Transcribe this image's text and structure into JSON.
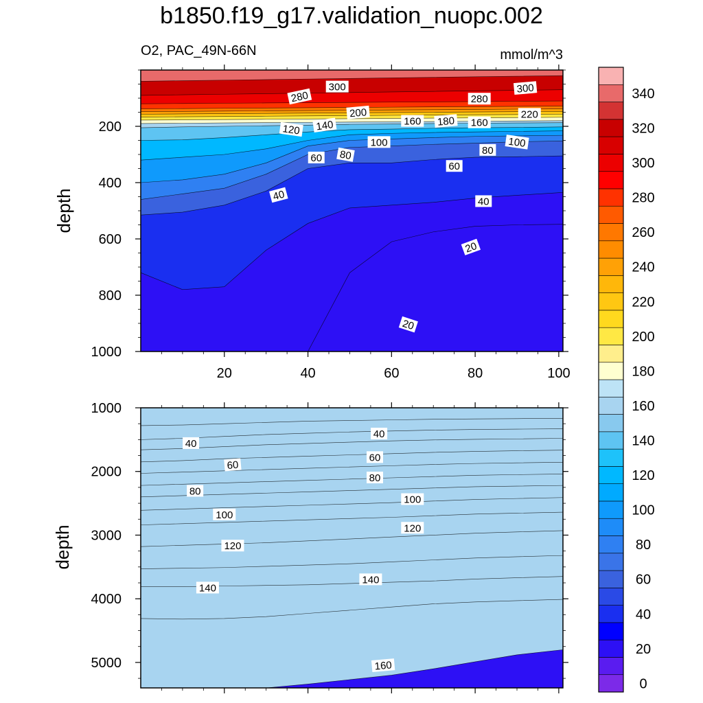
{
  "title": "b1850.f19_g17.validation_nuopc.002",
  "chart_data": {
    "type": "contour",
    "variable": "O2",
    "region": "PAC_49N-66N",
    "left_label": "O2, PAC_49N-66N",
    "units": "mmol/m^3",
    "colorbar": {
      "levels": [
        -5,
        5,
        15,
        25,
        35,
        45,
        55,
        65,
        75,
        85,
        95,
        105,
        115,
        125,
        135,
        145,
        155,
        165,
        175,
        185,
        195,
        205,
        215,
        225,
        235,
        245,
        255,
        265,
        275,
        285,
        295,
        305,
        315,
        325,
        335,
        345,
        355
      ],
      "colors": [
        "#7c2ae8",
        "#5a1cf0",
        "#2d10f5",
        "#0000ff",
        "#1a2ff0",
        "#2a4ae6",
        "#3a62de",
        "#3a74e8",
        "#2f80f2",
        "#1e8cf8",
        "#0f9afc",
        "#00aaff",
        "#00b8ff",
        "#1ec2fa",
        "#5ec4f2",
        "#88c9ee",
        "#a8d4f0",
        "#bde3f6",
        "#ffffd0",
        "#ffee8c",
        "#ffe844",
        "#ffd91e",
        "#ffc712",
        "#ffb70a",
        "#ffa106",
        "#ff8c00",
        "#ff7800",
        "#ff5a00",
        "#ff3200",
        "#ff0000",
        "#ec0000",
        "#d80000",
        "#c80000",
        "#d33333",
        "#e86a6a",
        "#f9b2b2"
      ],
      "tick_labels": [
        "0",
        "20",
        "40",
        "60",
        "80",
        "100",
        "120",
        "140",
        "160",
        "180",
        "200",
        "220",
        "240",
        "260",
        "280",
        "300",
        "320",
        "340"
      ]
    },
    "panels": [
      {
        "name": "upper",
        "ylabel": "depth",
        "ylim": [
          1000,
          0
        ],
        "xlim": [
          0,
          101
        ],
        "yticks": [
          "200",
          "400",
          "600",
          "800",
          "1000"
        ],
        "xticks": [
          "20",
          "40",
          "60",
          "80",
          "100"
        ],
        "x_profile": [
          0,
          10,
          20,
          30,
          40,
          50,
          60,
          70,
          80,
          90,
          101
        ],
        "contour_depths": {
          "20": [
            2000,
            2000,
            2000,
            2000,
            2000,
            720,
            610,
            575,
            555,
            550,
            548
          ],
          "40": [
            720,
            780,
            770,
            640,
            545,
            490,
            480,
            470,
            455,
            445,
            435
          ],
          "60": [
            515,
            505,
            480,
            430,
            350,
            330,
            330,
            318,
            310,
            308,
            305
          ],
          "80": [
            460,
            440,
            420,
            370,
            300,
            275,
            270,
            264,
            260,
            255,
            252
          ],
          "100": [
            400,
            390,
            370,
            330,
            270,
            250,
            245,
            240,
            236,
            234,
            232
          ],
          "120": [
            320,
            310,
            300,
            280,
            250,
            230,
            225,
            222,
            220,
            218,
            216
          ],
          "140": [
            250,
            248,
            240,
            230,
            220,
            212,
            210,
            207,
            205,
            204,
            202
          ],
          "160": [
            205,
            202,
            200,
            198,
            196,
            193,
            192,
            190,
            189,
            188,
            187
          ],
          "180": [
            190,
            189,
            188,
            187,
            186,
            185,
            184,
            183,
            182,
            181,
            180
          ],
          "200": [
            178,
            177,
            176,
            175,
            174,
            173,
            172,
            171,
            170,
            169,
            168
          ],
          "220": [
            167,
            166,
            165,
            164,
            163,
            162,
            161,
            160,
            159,
            158,
            157
          ],
          "240": [
            157,
            156,
            155,
            154,
            153,
            152,
            151,
            150,
            149,
            148,
            147
          ],
          "260": [
            148,
            147,
            146,
            145,
            144,
            143,
            142,
            141,
            140,
            139,
            138
          ],
          "280": [
            138,
            137,
            136,
            135,
            134,
            133,
            132,
            131,
            130,
            129,
            128
          ],
          "300": [
            120,
            119,
            118,
            117,
            116,
            115,
            114,
            113,
            112,
            111,
            110
          ],
          "320": [
            90,
            88,
            86,
            84,
            82,
            80,
            78,
            76,
            74,
            72,
            70
          ],
          "340": [
            40,
            38,
            36,
            34,
            32,
            30,
            28,
            26,
            24,
            22,
            20
          ]
        },
        "labels": [
          {
            "text": "300",
            "x": 47,
            "y": 60,
            "angle": 0
          },
          {
            "text": "280",
            "x": 38,
            "y": 95,
            "angle": -12
          },
          {
            "text": "280",
            "x": 81,
            "y": 103,
            "angle": 0
          },
          {
            "text": "300",
            "x": 92,
            "y": 65,
            "angle": -5
          },
          {
            "text": "200",
            "x": 52,
            "y": 152,
            "angle": -5
          },
          {
            "text": "220",
            "x": 93,
            "y": 157,
            "angle": 0
          },
          {
            "text": "120",
            "x": 36,
            "y": 212,
            "angle": 8
          },
          {
            "text": "140",
            "x": 44,
            "y": 197,
            "angle": -8
          },
          {
            "text": "160",
            "x": 65,
            "y": 182,
            "angle": 0
          },
          {
            "text": "180",
            "x": 73,
            "y": 182,
            "angle": -5
          },
          {
            "text": "160",
            "x": 81,
            "y": 187,
            "angle": 0
          },
          {
            "text": "100",
            "x": 57,
            "y": 257,
            "angle": 0
          },
          {
            "text": "100",
            "x": 90,
            "y": 257,
            "angle": 8
          },
          {
            "text": "80",
            "x": 49,
            "y": 302,
            "angle": 10
          },
          {
            "text": "80",
            "x": 83,
            "y": 285,
            "angle": 0
          },
          {
            "text": "60",
            "x": 42,
            "y": 312,
            "angle": 0
          },
          {
            "text": "60",
            "x": 75,
            "y": 342,
            "angle": 0
          },
          {
            "text": "40",
            "x": 33,
            "y": 445,
            "angle": -15
          },
          {
            "text": "40",
            "x": 82,
            "y": 467,
            "angle": 0
          },
          {
            "text": "20",
            "x": 79,
            "y": 630,
            "angle": -20
          },
          {
            "text": "20",
            "x": 64,
            "y": 905,
            "angle": 18
          }
        ]
      },
      {
        "name": "lower",
        "ylabel": "depth",
        "ylim": [
          5400,
          1000
        ],
        "xlim": [
          0,
          101
        ],
        "yticks": [
          "1000",
          "2000",
          "3000",
          "4000",
          "5000"
        ],
        "x_profile": [
          0,
          10,
          20,
          30,
          40,
          50,
          60,
          70,
          80,
          90,
          101
        ],
        "contour_depths": {
          "20": [
            1000,
            1000,
            1000,
            1000,
            1000,
            1000,
            1000,
            1000,
            1000,
            1000,
            1000
          ],
          "30": [
            1280,
            1270,
            1250,
            1230,
            1210,
            1200,
            1190,
            1180,
            1175,
            1170,
            1165
          ],
          "40": [
            1500,
            1480,
            1450,
            1420,
            1400,
            1380,
            1365,
            1350,
            1340,
            1335,
            1330
          ],
          "50": [
            1660,
            1640,
            1610,
            1580,
            1560,
            1540,
            1520,
            1505,
            1495,
            1488,
            1480
          ],
          "60": [
            1850,
            1830,
            1800,
            1780,
            1760,
            1740,
            1720,
            1700,
            1685,
            1675,
            1665
          ],
          "70": [
            2030,
            2010,
            1990,
            1970,
            1950,
            1930,
            1910,
            1890,
            1875,
            1865,
            1855
          ],
          "80": [
            2220,
            2200,
            2180,
            2160,
            2140,
            2120,
            2100,
            2080,
            2060,
            2050,
            2040
          ],
          "90": [
            2400,
            2380,
            2360,
            2340,
            2320,
            2300,
            2280,
            2260,
            2240,
            2230,
            2220
          ],
          "100": [
            2610,
            2590,
            2570,
            2550,
            2530,
            2510,
            2490,
            2465,
            2440,
            2425,
            2410
          ],
          "110": [
            2840,
            2820,
            2800,
            2780,
            2760,
            2740,
            2720,
            2695,
            2670,
            2655,
            2640
          ],
          "120": [
            3180,
            3160,
            3140,
            3120,
            3090,
            3060,
            3030,
            3000,
            2970,
            2950,
            2930
          ],
          "130": [
            3530,
            3520,
            3510,
            3490,
            3470,
            3450,
            3420,
            3390,
            3360,
            3340,
            3320
          ],
          "140": [
            3810,
            3810,
            3800,
            3790,
            3780,
            3760,
            3740,
            3720,
            3690,
            3670,
            3650
          ],
          "150": [
            4310,
            4320,
            4310,
            4280,
            4230,
            4180,
            4130,
            4080,
            4050,
            4030,
            4010
          ],
          "160": [
            5460,
            5460,
            5460,
            5400,
            5340,
            5270,
            5200,
            5100,
            4990,
            4880,
            4800
          ]
        },
        "labels": [
          {
            "text": "40",
            "x": 12,
            "y": 1560,
            "angle": 0
          },
          {
            "text": "40",
            "x": 57,
            "y": 1410,
            "angle": 0
          },
          {
            "text": "60",
            "x": 22,
            "y": 1900,
            "angle": -5
          },
          {
            "text": "60",
            "x": 56,
            "y": 1780,
            "angle": 0
          },
          {
            "text": "80",
            "x": 13,
            "y": 2310,
            "angle": 0
          },
          {
            "text": "80",
            "x": 56,
            "y": 2100,
            "angle": 0
          },
          {
            "text": "100",
            "x": 20,
            "y": 2680,
            "angle": 0
          },
          {
            "text": "100",
            "x": 65,
            "y": 2440,
            "angle": 0
          },
          {
            "text": "120",
            "x": 22,
            "y": 3170,
            "angle": 0
          },
          {
            "text": "120",
            "x": 65,
            "y": 2890,
            "angle": 0
          },
          {
            "text": "140",
            "x": 16,
            "y": 3830,
            "angle": 0
          },
          {
            "text": "140",
            "x": 55,
            "y": 3700,
            "angle": 0
          },
          {
            "text": "160",
            "x": 58,
            "y": 5050,
            "angle": -5
          }
        ]
      }
    ]
  }
}
